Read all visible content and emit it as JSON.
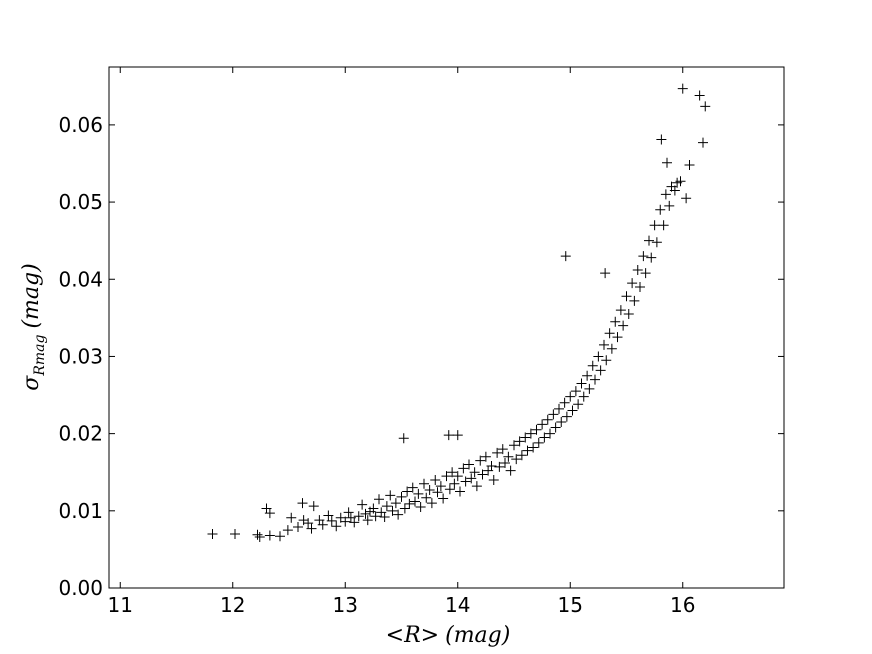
{
  "chart_data": {
    "type": "scatter",
    "title": "",
    "xlabel_parts": {
      "lt": "<",
      "var": "R",
      "gt": ">",
      "unit": "(mag)"
    },
    "ylabel_parts": {
      "sigma": "σ",
      "sub": "Rmag",
      "unit": "(mag)"
    },
    "xlim": [
      10.9,
      16.9
    ],
    "ylim": [
      0.0,
      0.0675
    ],
    "xticks": [
      11,
      12,
      13,
      14,
      15,
      16
    ],
    "xtick_labels": [
      "11",
      "12",
      "13",
      "14",
      "15",
      "16"
    ],
    "yticks": [
      0.0,
      0.01,
      0.02,
      0.03,
      0.04,
      0.05,
      0.06
    ],
    "ytick_labels": [
      "0.00",
      "0.01",
      "0.02",
      "0.03",
      "0.04",
      "0.05",
      "0.06"
    ],
    "grid": false,
    "legend": "none",
    "marker": "+",
    "marker_color": "#000000",
    "points": [
      [
        11.82,
        0.007
      ],
      [
        12.02,
        0.007
      ],
      [
        12.22,
        0.0069
      ],
      [
        12.24,
        0.0066
      ],
      [
        12.3,
        0.0103
      ],
      [
        12.33,
        0.0097
      ],
      [
        12.33,
        0.0068
      ],
      [
        12.42,
        0.0067
      ],
      [
        12.49,
        0.0075
      ],
      [
        12.52,
        0.0091
      ],
      [
        12.58,
        0.0079
      ],
      [
        12.62,
        0.011
      ],
      [
        12.63,
        0.0088
      ],
      [
        12.67,
        0.0084
      ],
      [
        12.7,
        0.0077
      ],
      [
        12.72,
        0.0106
      ],
      [
        12.77,
        0.0088
      ],
      [
        12.8,
        0.0082
      ],
      [
        12.85,
        0.0094
      ],
      [
        12.88,
        0.0087
      ],
      [
        12.92,
        0.008
      ],
      [
        12.96,
        0.0091
      ],
      [
        13.0,
        0.0086
      ],
      [
        13.03,
        0.0098
      ],
      [
        13.05,
        0.0091
      ],
      [
        13.08,
        0.0085
      ],
      [
        13.12,
        0.0093
      ],
      [
        13.15,
        0.0108
      ],
      [
        13.18,
        0.0096
      ],
      [
        13.2,
        0.0088
      ],
      [
        13.22,
        0.0099
      ],
      [
        13.25,
        0.0103
      ],
      [
        13.27,
        0.0093
      ],
      [
        13.3,
        0.0115
      ],
      [
        13.32,
        0.0098
      ],
      [
        13.35,
        0.0092
      ],
      [
        13.37,
        0.0106
      ],
      [
        13.4,
        0.012
      ],
      [
        13.42,
        0.01
      ],
      [
        13.45,
        0.011
      ],
      [
        13.47,
        0.0095
      ],
      [
        13.5,
        0.0118
      ],
      [
        13.52,
        0.0194
      ],
      [
        13.53,
        0.0103
      ],
      [
        13.55,
        0.0125
      ],
      [
        13.57,
        0.0109
      ],
      [
        13.6,
        0.013
      ],
      [
        13.62,
        0.0112
      ],
      [
        13.65,
        0.0122
      ],
      [
        13.67,
        0.0105
      ],
      [
        13.7,
        0.0135
      ],
      [
        13.72,
        0.0117
      ],
      [
        13.75,
        0.0127
      ],
      [
        13.77,
        0.011
      ],
      [
        13.8,
        0.014
      ],
      [
        13.82,
        0.0124
      ],
      [
        13.85,
        0.0132
      ],
      [
        13.87,
        0.0116
      ],
      [
        13.9,
        0.0145
      ],
      [
        13.92,
        0.0198
      ],
      [
        13.93,
        0.0128
      ],
      [
        13.95,
        0.015
      ],
      [
        13.97,
        0.0135
      ],
      [
        14.0,
        0.0198
      ],
      [
        14.0,
        0.0145
      ],
      [
        14.02,
        0.0125
      ],
      [
        14.05,
        0.0155
      ],
      [
        14.07,
        0.0138
      ],
      [
        14.1,
        0.016
      ],
      [
        14.12,
        0.0142
      ],
      [
        14.15,
        0.015
      ],
      [
        14.17,
        0.0132
      ],
      [
        14.2,
        0.0165
      ],
      [
        14.22,
        0.0147
      ],
      [
        14.25,
        0.017
      ],
      [
        14.27,
        0.0152
      ],
      [
        14.3,
        0.0158
      ],
      [
        14.32,
        0.014
      ],
      [
        14.35,
        0.0175
      ],
      [
        14.37,
        0.0157
      ],
      [
        14.4,
        0.018
      ],
      [
        14.42,
        0.0162
      ],
      [
        14.45,
        0.017
      ],
      [
        14.47,
        0.0152
      ],
      [
        14.5,
        0.0185
      ],
      [
        14.52,
        0.0167
      ],
      [
        14.55,
        0.019
      ],
      [
        14.57,
        0.0172
      ],
      [
        14.6,
        0.0195
      ],
      [
        14.62,
        0.0178
      ],
      [
        14.65,
        0.02
      ],
      [
        14.67,
        0.0182
      ],
      [
        14.7,
        0.0205
      ],
      [
        14.72,
        0.0188
      ],
      [
        14.75,
        0.0212
      ],
      [
        14.77,
        0.0195
      ],
      [
        14.8,
        0.0218
      ],
      [
        14.82,
        0.02
      ],
      [
        14.85,
        0.0225
      ],
      [
        14.87,
        0.0208
      ],
      [
        14.9,
        0.0232
      ],
      [
        14.92,
        0.0215
      ],
      [
        14.95,
        0.024
      ],
      [
        14.96,
        0.043
      ],
      [
        14.97,
        0.0222
      ],
      [
        15.0,
        0.0248
      ],
      [
        15.02,
        0.023
      ],
      [
        15.05,
        0.0255
      ],
      [
        15.07,
        0.0238
      ],
      [
        15.1,
        0.0265
      ],
      [
        15.12,
        0.0248
      ],
      [
        15.15,
        0.0275
      ],
      [
        15.17,
        0.0258
      ],
      [
        15.2,
        0.0288
      ],
      [
        15.22,
        0.027
      ],
      [
        15.25,
        0.03
      ],
      [
        15.27,
        0.0282
      ],
      [
        15.3,
        0.0315
      ],
      [
        15.31,
        0.0408
      ],
      [
        15.32,
        0.0295
      ],
      [
        15.35,
        0.033
      ],
      [
        15.37,
        0.031
      ],
      [
        15.4,
        0.0345
      ],
      [
        15.42,
        0.0325
      ],
      [
        15.45,
        0.036
      ],
      [
        15.47,
        0.034
      ],
      [
        15.5,
        0.0378
      ],
      [
        15.52,
        0.0355
      ],
      [
        15.55,
        0.0395
      ],
      [
        15.57,
        0.0372
      ],
      [
        15.6,
        0.0412
      ],
      [
        15.62,
        0.039
      ],
      [
        15.65,
        0.043
      ],
      [
        15.67,
        0.0408
      ],
      [
        15.7,
        0.045
      ],
      [
        15.72,
        0.0428
      ],
      [
        15.75,
        0.047
      ],
      [
        15.77,
        0.0448
      ],
      [
        15.8,
        0.049
      ],
      [
        15.81,
        0.0581
      ],
      [
        15.83,
        0.047
      ],
      [
        15.85,
        0.051
      ],
      [
        15.86,
        0.0551
      ],
      [
        15.88,
        0.0495
      ],
      [
        15.9,
        0.052
      ],
      [
        15.93,
        0.0515
      ],
      [
        15.95,
        0.0525
      ],
      [
        15.98,
        0.0527
      ],
      [
        16.0,
        0.0647
      ],
      [
        16.03,
        0.0505
      ],
      [
        16.06,
        0.0548
      ],
      [
        16.15,
        0.0638
      ],
      [
        16.18,
        0.0577
      ],
      [
        16.2,
        0.0624
      ]
    ]
  }
}
